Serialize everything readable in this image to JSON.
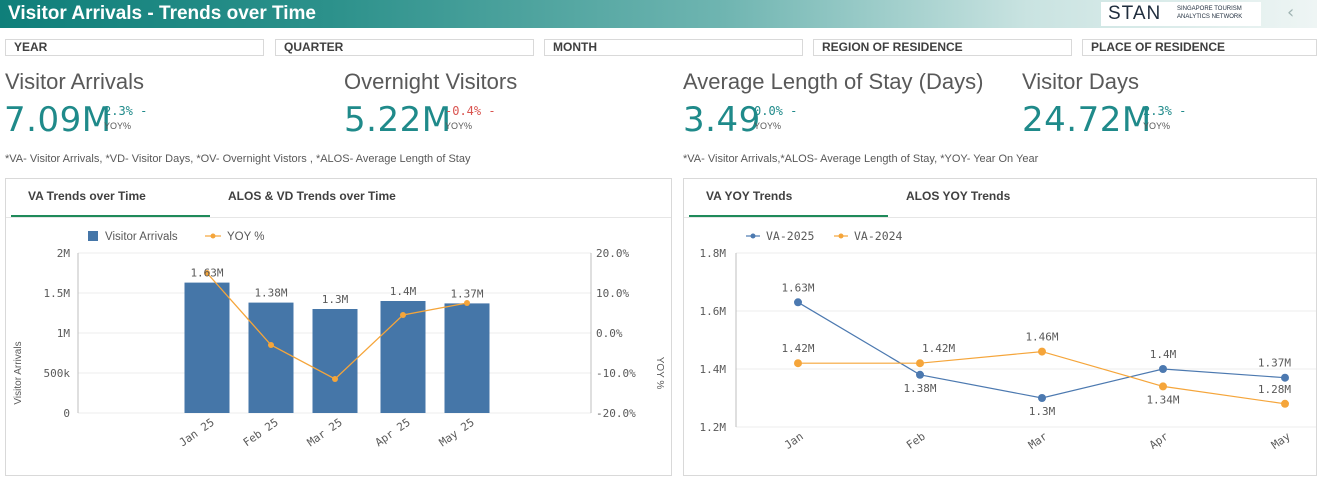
{
  "header": {
    "title": "Visitor Arrivals - Trends over Time",
    "logo_word": "STAN",
    "logo_sub_line1": "SINGAPORE TOURISM",
    "logo_sub_line2": "ANALYTICS NETWORK",
    "back_icon": "chevron-left-icon"
  },
  "filters": [
    {
      "label": "YEAR"
    },
    {
      "label": "QUARTER"
    },
    {
      "label": "MONTH"
    },
    {
      "label": "REGION OF RESIDENCE"
    },
    {
      "label": "PLACE OF RESIDENCE"
    }
  ],
  "kpis": [
    {
      "title": "Visitor Arrivals",
      "value": "7.09M",
      "pct": "2.3%",
      "dash": "-",
      "yoy": "YOY%",
      "trend": "pos"
    },
    {
      "title": "Overnight Visitors",
      "value": "5.22M",
      "pct": "-0.4%",
      "dash": "-",
      "yoy": "YOY%",
      "trend": "neg"
    },
    {
      "title": "Average Length of Stay (Days)",
      "value": "3.49",
      "pct": "0.0%",
      "dash": "-",
      "yoy": "YOY%",
      "trend": "pos"
    },
    {
      "title": "Visitor Days",
      "value": "24.72M",
      "pct": "2.3%",
      "dash": "-",
      "yoy": "YOY%",
      "trend": "pos"
    }
  ],
  "notes": {
    "left": "*VA- Visitor Arrivals, *VD- Visitor Days, *OV- Overnight Vistors , *ALOS- Average Length of Stay",
    "right": "*VA- Visitor Arrivals,*ALOS- Average Length of Stay, *YOY- Year On Year"
  },
  "left_panel": {
    "tabs": [
      "VA Trends over Time",
      "ALOS & VD Trends over Time"
    ],
    "active_tab": 0
  },
  "right_panel": {
    "tabs": [
      "VA YOY Trends",
      "ALOS YOY Trends"
    ],
    "active_tab": 0
  },
  "colors": {
    "teal": "#1f8a8a",
    "bar": "#4576a8",
    "line_orange": "#f5a53a",
    "series_blue": "#4c79b0",
    "negative": "#d9534f"
  },
  "chart_data": [
    {
      "type": "bar",
      "categories": [
        "Jan 25",
        "Feb 25",
        "Mar 25",
        "Apr 25",
        "May 25"
      ],
      "series": [
        {
          "name": "Visitor Arrivals",
          "type": "bar",
          "axis": "left",
          "values": [
            1630000,
            1380000,
            1300000,
            1400000,
            1370000
          ],
          "labels": [
            "1.63M",
            "1.38M",
            "1.3M",
            "1.4M",
            "1.37M"
          ]
        },
        {
          "name": "YOY %",
          "type": "line",
          "axis": "right",
          "values": [
            15.0,
            -3.0,
            -11.5,
            4.5,
            7.5
          ]
        }
      ],
      "ylabel": "Visitor Arrivals",
      "y2label": "YOY %",
      "ylim": [
        0,
        2000000
      ],
      "y2lim": [
        -20,
        20
      ],
      "yticks": [
        "0",
        "500k",
        "1M",
        "1.5M",
        "2M"
      ],
      "y2ticks": [
        "-20.0%",
        "-10.0%",
        "0.0%",
        "10.0%",
        "20.0%"
      ],
      "legend_position": "top-left"
    },
    {
      "type": "line",
      "categories": [
        "Jan",
        "Feb",
        "Mar",
        "Apr",
        "May"
      ],
      "series": [
        {
          "name": "VA-2025",
          "values": [
            1.63,
            1.38,
            1.3,
            1.4,
            1.37
          ],
          "labels": [
            "1.63M",
            "1.38M",
            "1.3M",
            "1.4M",
            "1.37M"
          ]
        },
        {
          "name": "VA-2024",
          "values": [
            1.42,
            1.42,
            1.46,
            1.34,
            1.28
          ],
          "labels": [
            "1.42M",
            "1.42M",
            "1.46M",
            "1.34M",
            "1.28M"
          ]
        }
      ],
      "ylim": [
        1.2,
        1.8
      ],
      "yticks": [
        "1.2M",
        "1.4M",
        "1.6M",
        "1.8M"
      ],
      "grid": true,
      "legend_position": "top-left"
    }
  ]
}
